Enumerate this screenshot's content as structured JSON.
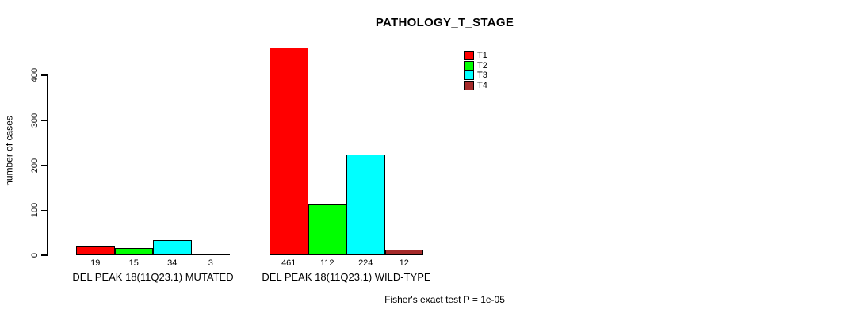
{
  "chart_data": {
    "type": "bar",
    "title": "PATHOLOGY_T_STAGE",
    "ylabel": "number of cases",
    "xlabel": "",
    "categories": [
      "DEL PEAK 18(11Q23.1) MUTATED",
      "DEL PEAK 18(11Q23.1) WILD-TYPE"
    ],
    "series": [
      {
        "name": "T1",
        "color": "#FF0000",
        "values": [
          19,
          461
        ]
      },
      {
        "name": "T2",
        "color": "#00FF00",
        "values": [
          15,
          112
        ]
      },
      {
        "name": "T3",
        "color": "#00FFFF",
        "values": [
          34,
          224
        ]
      },
      {
        "name": "T4",
        "color": "#A52A2A",
        "values": [
          3,
          12
        ]
      }
    ],
    "yticks": [
      0,
      100,
      200,
      300,
      400
    ],
    "ylim": [
      0,
      467
    ],
    "bar_value_labels_shown": true,
    "grid": false,
    "legend_position": "top-right",
    "annotation": "Fisher's exact test P = 1e-05"
  },
  "colors": {
    "background": "#FFFFFF",
    "axis": "#000000",
    "bar_border": "#000000",
    "text": "#000000"
  }
}
